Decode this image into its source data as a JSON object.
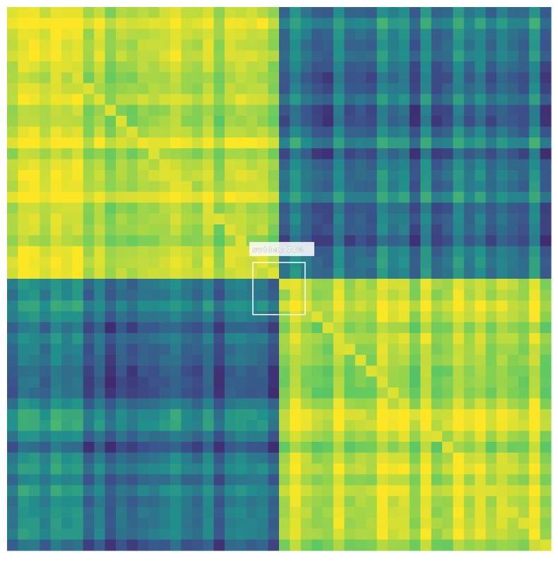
{
  "chart_data": {
    "type": "heatmap",
    "title": "",
    "xlabel": "",
    "ylabel": "",
    "grid": false,
    "legend": "none",
    "colormap": "viridis",
    "value_range": [
      0,
      1
    ],
    "matrix_size": [
      50,
      50
    ],
    "blocks": [
      {
        "rows": [
          0,
          24
        ],
        "cols": [
          0,
          24
        ],
        "level": 0.9
      },
      {
        "rows": [
          0,
          24
        ],
        "cols": [
          25,
          49
        ],
        "level": 0.38
      },
      {
        "rows": [
          25,
          49
        ],
        "cols": [
          0,
          24
        ],
        "level": 0.38
      },
      {
        "rows": [
          25,
          49
        ],
        "cols": [
          25,
          49
        ],
        "level": 0.88
      }
    ],
    "annotations": [
      {
        "label": "sudden: 74%",
        "class": "sudden",
        "confidence": 0.74,
        "row": 23.5,
        "col": 25,
        "extent": 4.8,
        "box_color": "#ffffff"
      }
    ]
  },
  "colors": {
    "viridis": [
      "#440154",
      "#3b528b",
      "#21918c",
      "#5ec962",
      "#fde725"
    ],
    "detection": "#ffffff"
  }
}
